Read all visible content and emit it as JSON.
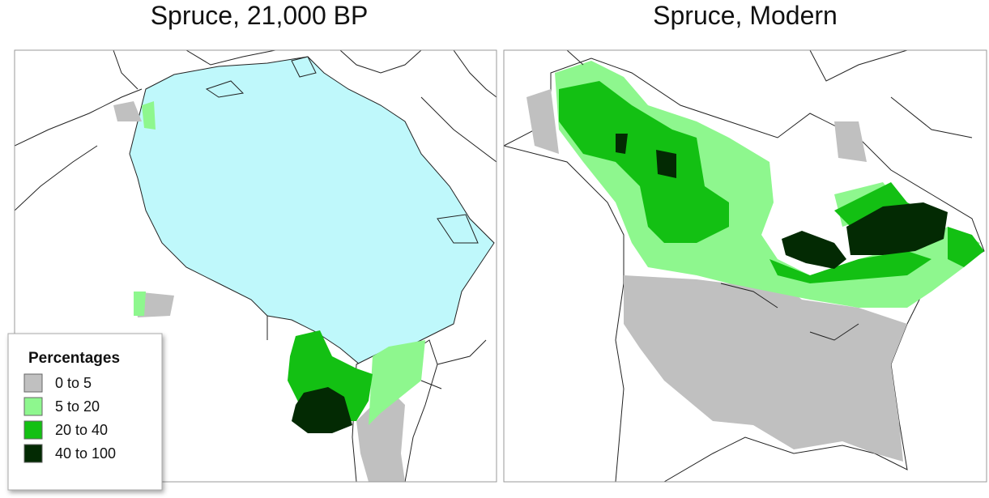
{
  "maps": [
    {
      "title": "Spruce, 21,000 BP"
    },
    {
      "title": "Spruce, Modern"
    }
  ],
  "legend": {
    "title": "Percentages",
    "items": [
      {
        "label": "0 to 5",
        "color": "#c0c0c0"
      },
      {
        "label": "5 to 20",
        "color": "#8ef78e"
      },
      {
        "label": "20 to 40",
        "color": "#13c013"
      },
      {
        "label": "40 to 100",
        "color": "#032a03"
      }
    ]
  }
}
